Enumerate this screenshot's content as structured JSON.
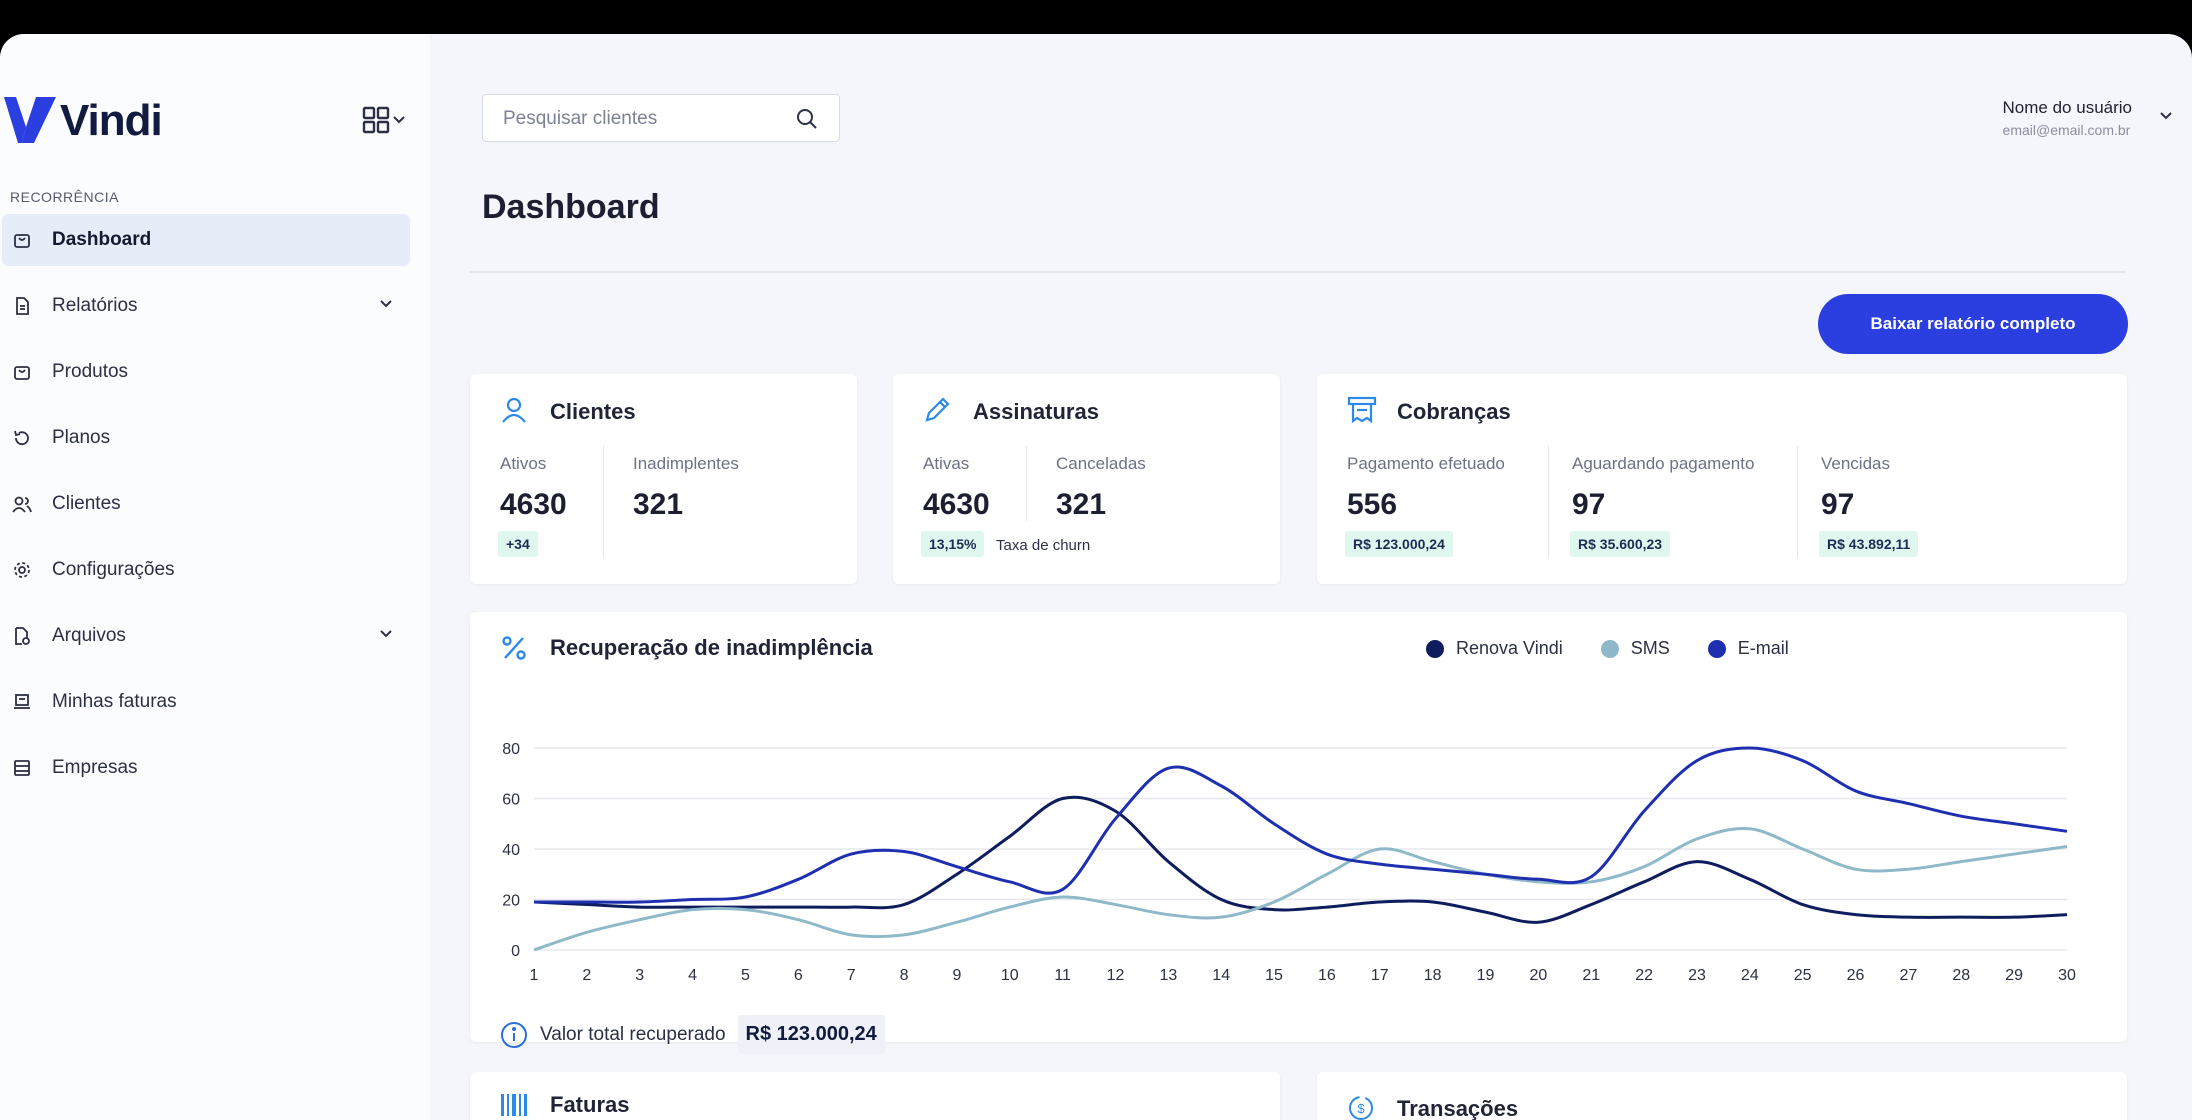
{
  "brand": {
    "name": "Vindi",
    "color": "#2b3fe0"
  },
  "sidebar": {
    "section_label": "RECORRÊNCIA",
    "items": [
      {
        "label": "Dashboard",
        "icon": "bag-icon",
        "active": true
      },
      {
        "label": "Relatórios",
        "icon": "document-icon",
        "expandable": true
      },
      {
        "label": "Produtos",
        "icon": "bag-icon"
      },
      {
        "label": "Planos",
        "icon": "refresh-icon"
      },
      {
        "label": "Clientes",
        "icon": "users-icon"
      },
      {
        "label": "Configurações",
        "icon": "gear-icon"
      },
      {
        "label": "Arquivos",
        "icon": "file-icon",
        "expandable": true
      },
      {
        "label": "Minhas faturas",
        "icon": "invoice-icon"
      },
      {
        "label": "Empresas",
        "icon": "building-icon"
      }
    ]
  },
  "header": {
    "search": {
      "placeholder": "Pesquisar clientes",
      "value": ""
    },
    "user": {
      "name": "Nome do usuário",
      "email": "email@email.com.br"
    }
  },
  "main": {
    "title": "Dashboard",
    "download_button": "Baixar relatório completo",
    "cards": {
      "clientes": {
        "title": "Clientes",
        "stats": [
          {
            "label": "Ativos",
            "value": "4630",
            "badge": "+34"
          },
          {
            "label": "Inadimplentes",
            "value": "321"
          }
        ]
      },
      "assinaturas": {
        "title": "Assinaturas",
        "stats": [
          {
            "label": "Ativas",
            "value": "4630",
            "badge": "13,15%",
            "badge_note": "Taxa de churn"
          },
          {
            "label": "Canceladas",
            "value": "321"
          }
        ]
      },
      "cobrancas": {
        "title": "Cobranças",
        "stats": [
          {
            "label": "Pagamento efetuado",
            "value": "556",
            "badge": "R$ 123.000,24"
          },
          {
            "label": "Aguardando pagamento",
            "value": "97",
            "badge": "R$ 35.600,23"
          },
          {
            "label": "Vencidas",
            "value": "97",
            "badge": "R$ 43.892,11"
          }
        ]
      }
    },
    "recovery": {
      "title": "Recuperação de inadimplência",
      "total_label": "Valor total recuperado",
      "total_value": "R$ 123.000,24"
    },
    "bottom_cards": {
      "faturas": "Faturas",
      "transacoes": "Transações"
    }
  },
  "chart_data": {
    "type": "line",
    "title": "Recuperação de inadimplência",
    "x": [
      1,
      2,
      3,
      4,
      5,
      6,
      7,
      8,
      9,
      10,
      11,
      12,
      13,
      14,
      15,
      16,
      17,
      18,
      19,
      20,
      21,
      22,
      23,
      24,
      25,
      26,
      27,
      28,
      29,
      30
    ],
    "ylim": [
      0,
      80
    ],
    "yticks": [
      0,
      20,
      40,
      60,
      80
    ],
    "grid": true,
    "legend": "top",
    "series": [
      {
        "name": "Renova Vindi",
        "color": "#0f1d5e",
        "values": [
          19,
          18,
          17,
          17,
          17,
          17,
          17,
          18,
          30,
          45,
          60,
          55,
          35,
          20,
          16,
          17,
          19,
          19,
          15,
          11,
          18,
          27,
          35,
          28,
          18,
          14,
          13,
          13,
          13,
          14
        ]
      },
      {
        "name": "SMS",
        "color": "#8fb9c9",
        "values": [
          0,
          7,
          12,
          16,
          16,
          12,
          6,
          6,
          11,
          17,
          21,
          18,
          14,
          13,
          19,
          30,
          40,
          35,
          30,
          27,
          27,
          33,
          44,
          48,
          40,
          32,
          32,
          35,
          38,
          41
        ]
      },
      {
        "name": "E-mail",
        "color": "#1e2fb0",
        "values": [
          19,
          19,
          19,
          20,
          21,
          28,
          38,
          39,
          33,
          27,
          24,
          52,
          72,
          65,
          50,
          38,
          34,
          32,
          30,
          28,
          29,
          55,
          75,
          80,
          75,
          63,
          58,
          53,
          50,
          47
        ]
      }
    ]
  }
}
